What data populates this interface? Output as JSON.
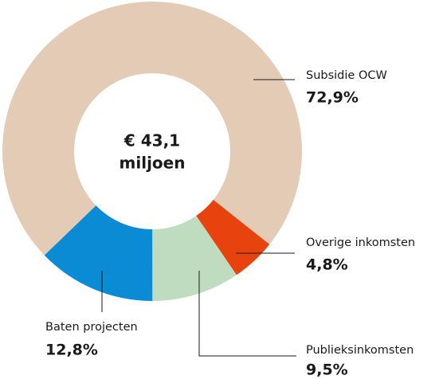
{
  "chart_data": {
    "type": "donut",
    "center_label": [
      "€ 43,1",
      "miljoen"
    ],
    "categories": [
      "Subsidie OCW",
      "Overige inkomsten",
      "Publieksinkomsten",
      "Baten projecten"
    ],
    "values": [
      72.9,
      4.8,
      9.5,
      12.8
    ],
    "value_labels": [
      "72,9%",
      "4,8%",
      "9,5%",
      "12,8%"
    ],
    "colors": [
      "#e3cbb6",
      "#e8430e",
      "#bfdcc0",
      "#0a8bd4"
    ]
  }
}
